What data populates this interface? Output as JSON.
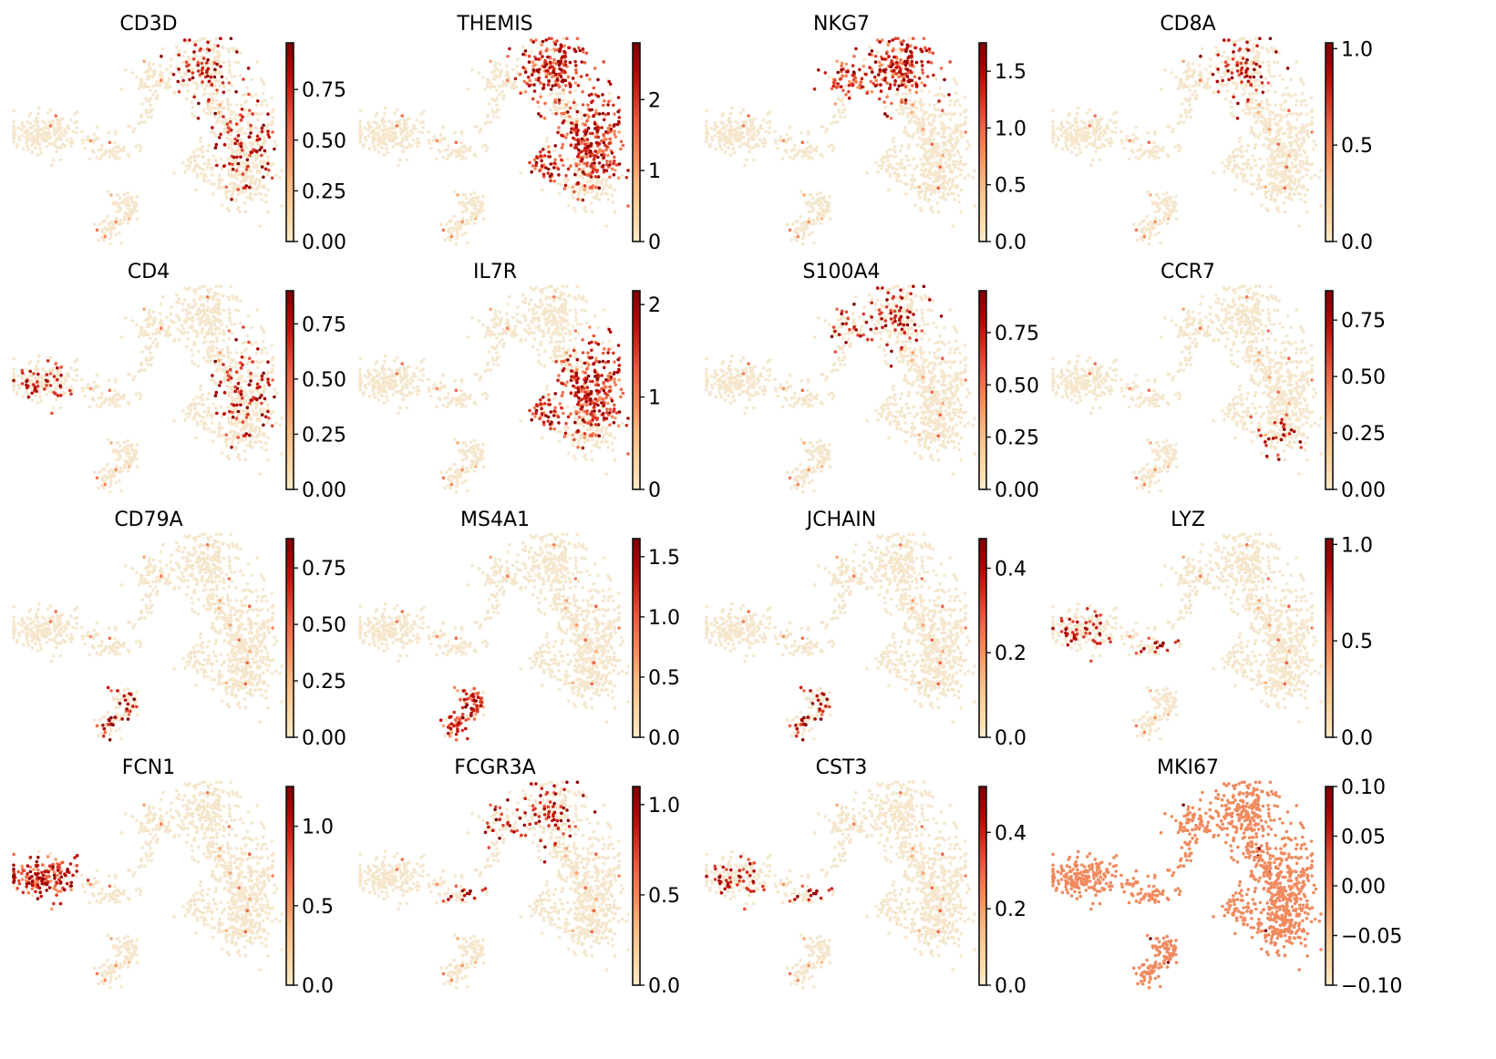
{
  "figure": {
    "type": "umap_feature_grid",
    "colormap": "OrRd",
    "colormap_stops": [
      "#fff7ec",
      "#fee8c8",
      "#fdd49e",
      "#fdbb84",
      "#fc8d59",
      "#ef6548",
      "#d7301f",
      "#b30000",
      "#7f0000"
    ],
    "background_point_color": "#f5e6cc"
  },
  "chart_data": [
    {
      "type": "scatter",
      "title": "CD3D",
      "vmin": 0,
      "vmax": 0.98,
      "ticks": [
        0,
        0.25,
        0.5,
        0.75
      ],
      "tick_labels": [
        "0.00",
        "0.25",
        "0.50",
        "0.75"
      ],
      "expressing_clusters": [
        "cd8_top",
        "cd4_right"
      ],
      "expression_level": "sparse-high"
    },
    {
      "type": "scatter",
      "title": "THEMIS",
      "vmin": 0,
      "vmax": 2.8,
      "ticks": [
        0,
        1,
        2
      ],
      "tick_labels": [
        "0",
        "1",
        "2"
      ],
      "expressing_clusters": [
        "cd8_top",
        "cd4_right",
        "mid_branch"
      ],
      "expression_level": "dense-high"
    },
    {
      "type": "scatter",
      "title": "NKG7",
      "vmin": 0,
      "vmax": 1.75,
      "ticks": [
        0,
        0.5,
        1.0,
        1.5
      ],
      "tick_labels": [
        "0.0",
        "0.5",
        "1.0",
        "1.5"
      ],
      "expressing_clusters": [
        "nk_top_left",
        "cd8_top"
      ],
      "expression_level": "dense-high"
    },
    {
      "type": "scatter",
      "title": "CD8A",
      "vmin": 0,
      "vmax": 1.03,
      "ticks": [
        0,
        0.5,
        1.0
      ],
      "tick_labels": [
        "0.0",
        "0.5",
        "1.0"
      ],
      "expressing_clusters": [
        "cd8_top"
      ],
      "expression_level": "sparse-high"
    },
    {
      "type": "scatter",
      "title": "CD4",
      "vmin": 0,
      "vmax": 0.9,
      "ticks": [
        0,
        0.25,
        0.5,
        0.75
      ],
      "tick_labels": [
        "0.00",
        "0.25",
        "0.50",
        "0.75"
      ],
      "expressing_clusters": [
        "cd4_right",
        "mono_left"
      ],
      "expression_level": "sparse-high"
    },
    {
      "type": "scatter",
      "title": "IL7R",
      "vmin": 0,
      "vmax": 2.15,
      "ticks": [
        0,
        1,
        2
      ],
      "tick_labels": [
        "0",
        "1",
        "2"
      ],
      "expressing_clusters": [
        "cd4_right",
        "mid_branch"
      ],
      "expression_level": "dense-high"
    },
    {
      "type": "scatter",
      "title": "S100A4",
      "vmin": 0,
      "vmax": 0.95,
      "ticks": [
        0,
        0.25,
        0.5,
        0.75
      ],
      "tick_labels": [
        "0.00",
        "0.25",
        "0.50",
        "0.75"
      ],
      "expressing_clusters": [
        "cd8_top",
        "nk_top_left"
      ],
      "expression_level": "sparse-high"
    },
    {
      "type": "scatter",
      "title": "CCR7",
      "vmin": 0,
      "vmax": 0.88,
      "ticks": [
        0,
        0.25,
        0.5,
        0.75
      ],
      "tick_labels": [
        "0.00",
        "0.25",
        "0.50",
        "0.75"
      ],
      "expressing_clusters": [
        "cd4_lower"
      ],
      "expression_level": "sparse-high"
    },
    {
      "type": "scatter",
      "title": "CD79A",
      "vmin": 0,
      "vmax": 0.88,
      "ticks": [
        0,
        0.25,
        0.5,
        0.75
      ],
      "tick_labels": [
        "0.00",
        "0.25",
        "0.50",
        "0.75"
      ],
      "expressing_clusters": [
        "b_bottom"
      ],
      "expression_level": "sparse-high"
    },
    {
      "type": "scatter",
      "title": "MS4A1",
      "vmin": 0,
      "vmax": 1.65,
      "ticks": [
        0,
        0.5,
        1.0,
        1.5
      ],
      "tick_labels": [
        "0.0",
        "0.5",
        "1.0",
        "1.5"
      ],
      "expressing_clusters": [
        "b_bottom"
      ],
      "expression_level": "dense-high"
    },
    {
      "type": "scatter",
      "title": "JCHAIN",
      "vmin": 0,
      "vmax": 0.47,
      "ticks": [
        0,
        0.2,
        0.4
      ],
      "tick_labels": [
        "0.0",
        "0.2",
        "0.4"
      ],
      "expressing_clusters": [
        "b_bottom"
      ],
      "expression_level": "sparse-high"
    },
    {
      "type": "scatter",
      "title": "LYZ",
      "vmin": 0,
      "vmax": 1.03,
      "ticks": [
        0,
        0.5,
        1.0
      ],
      "tick_labels": [
        "0.0",
        "0.5",
        "1.0"
      ],
      "expressing_clusters": [
        "mono_left",
        "mono_bridge"
      ],
      "expression_level": "sparse-high"
    },
    {
      "type": "scatter",
      "title": "FCN1",
      "vmin": 0,
      "vmax": 1.25,
      "ticks": [
        0,
        0.5,
        1.0
      ],
      "tick_labels": [
        "0.0",
        "0.5",
        "1.0"
      ],
      "expressing_clusters": [
        "mono_left"
      ],
      "expression_level": "dense-high"
    },
    {
      "type": "scatter",
      "title": "FCGR3A",
      "vmin": 0,
      "vmax": 1.1,
      "ticks": [
        0,
        0.5,
        1.0
      ],
      "tick_labels": [
        "0.0",
        "0.5",
        "1.0"
      ],
      "expressing_clusters": [
        "nk_top_left",
        "cd8_top",
        "mono_bridge"
      ],
      "expression_level": "sparse-high"
    },
    {
      "type": "scatter",
      "title": "CST3",
      "vmin": 0,
      "vmax": 0.52,
      "ticks": [
        0,
        0.2,
        0.4
      ],
      "tick_labels": [
        "0.0",
        "0.2",
        "0.4"
      ],
      "expressing_clusters": [
        "mono_left",
        "mono_bridge"
      ],
      "expression_level": "sparse-high"
    },
    {
      "type": "scatter",
      "title": "MKI67",
      "vmin": -0.1,
      "vmax": 0.1,
      "ticks": [
        -0.1,
        -0.05,
        0,
        0.05,
        0.1
      ],
      "tick_labels": [
        "−0.10",
        "−0.05",
        "0.00",
        "0.05",
        "0.10"
      ],
      "expressing_clusters": [],
      "expression_level": "uniform-mid"
    }
  ]
}
